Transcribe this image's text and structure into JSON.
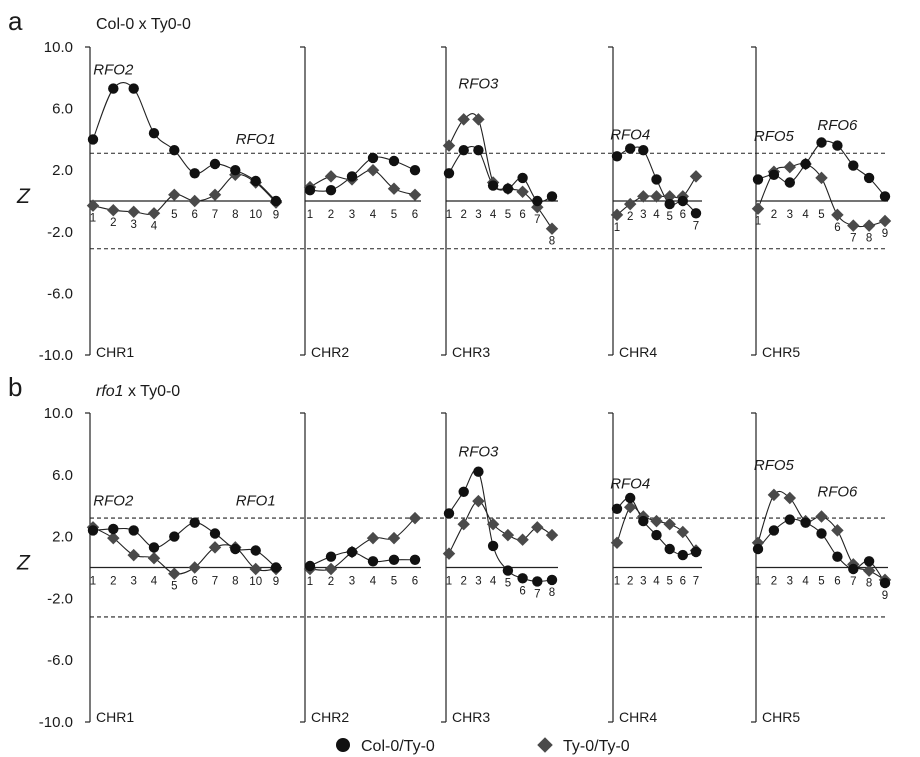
{
  "chart_data": [
    {
      "type": "line",
      "panel_label": "a",
      "title_italic": "",
      "title_rest": "Col-0 x Ty0-0",
      "ylabel": "Z",
      "ylim": [
        -10,
        10
      ],
      "yticks": [
        "10.0",
        "6.0",
        "2.0",
        "-2.0",
        "-6.0",
        "-10.0"
      ],
      "threshold": 3.1,
      "series_names": [
        "Col-0/Ty-0",
        "Ty-0/Ty-0"
      ],
      "chromosomes": [
        {
          "name": "CHR1",
          "markers": [
            {
              "label": "1",
              "col": 4.0,
              "ty": -0.3
            },
            {
              "label": "2",
              "col": 7.3,
              "ty": -0.6
            },
            {
              "label": "3",
              "col": 7.3,
              "ty": -0.7
            },
            {
              "label": "4",
              "col": 4.4,
              "ty": -0.8
            },
            {
              "label": "5",
              "col": 3.3,
              "ty": 0.4
            },
            {
              "label": "6",
              "col": 1.8,
              "ty": 0.0
            },
            {
              "label": "7",
              "col": 2.4,
              "ty": 0.4
            },
            {
              "label": "8",
              "col": 2.0,
              "ty": 1.7
            },
            {
              "label": "10",
              "col": 1.3,
              "ty": 1.2
            },
            {
              "label": "9",
              "col": 0.0,
              "ty": -0.1
            }
          ],
          "annotations": [
            {
              "text": "RFO2",
              "marker": 1,
              "z": 8.2
            },
            {
              "text": "RFO1",
              "marker": 8,
              "z": 3.7
            }
          ]
        },
        {
          "name": "CHR2",
          "markers": [
            {
              "label": "1",
              "col": 0.7,
              "ty": 0.9
            },
            {
              "label": "2",
              "col": 0.7,
              "ty": 1.6
            },
            {
              "label": "3",
              "col": 1.6,
              "ty": 1.4
            },
            {
              "label": "4",
              "col": 2.8,
              "ty": 2.0
            },
            {
              "label": "5",
              "col": 2.6,
              "ty": 0.8
            },
            {
              "label": "6",
              "col": 2.0,
              "ty": 0.4
            }
          ],
          "annotations": []
        },
        {
          "name": "CHR3",
          "markers": [
            {
              "label": "1",
              "col": 1.8,
              "ty": 3.6
            },
            {
              "label": "2",
              "col": 3.3,
              "ty": 5.3
            },
            {
              "label": "3",
              "col": 3.3,
              "ty": 5.3
            },
            {
              "label": "4",
              "col": 1.0,
              "ty": 1.2
            },
            {
              "label": "5",
              "col": 0.8,
              "ty": 0.8
            },
            {
              "label": "6",
              "col": 1.5,
              "ty": 0.6
            },
            {
              "label": "7",
              "col": 0.0,
              "ty": -0.4
            },
            {
              "label": "8",
              "col": 0.3,
              "ty": -1.8
            }
          ],
          "annotations": [
            {
              "text": "RFO3",
              "marker": 2,
              "z": 7.3
            }
          ]
        },
        {
          "name": "CHR4",
          "markers": [
            {
              "label": "1",
              "col": 2.9,
              "ty": -0.9
            },
            {
              "label": "2",
              "col": 3.4,
              "ty": -0.2
            },
            {
              "label": "3",
              "col": 3.3,
              "ty": 0.3
            },
            {
              "label": "4",
              "col": 1.4,
              "ty": 0.3
            },
            {
              "label": "5",
              "col": -0.2,
              "ty": 0.3
            },
            {
              "label": "6",
              "col": 0.0,
              "ty": 0.3
            },
            {
              "label": "7",
              "col": -0.8,
              "ty": 1.6
            }
          ],
          "annotations": [
            {
              "text": "RFO4",
              "marker": 1,
              "z": 4.0
            }
          ]
        },
        {
          "name": "CHR5",
          "markers": [
            {
              "label": "1",
              "col": 1.4,
              "ty": -0.5
            },
            {
              "label": "2",
              "col": 1.7,
              "ty": 1.9
            },
            {
              "label": "3",
              "col": 1.2,
              "ty": 2.2
            },
            {
              "label": "4",
              "col": 2.4,
              "ty": 2.4
            },
            {
              "label": "5",
              "col": 3.8,
              "ty": 1.5
            },
            {
              "label": "6",
              "col": 3.6,
              "ty": -0.9
            },
            {
              "label": "7",
              "col": 2.3,
              "ty": -1.6
            },
            {
              "label": "8",
              "col": 1.5,
              "ty": -1.6
            },
            {
              "label": "9",
              "col": 0.3,
              "ty": -1.3
            }
          ],
          "annotations": [
            {
              "text": "RFO5",
              "marker": 1,
              "z": 3.9
            },
            {
              "text": "RFO6",
              "marker": 5,
              "z": 4.6
            }
          ]
        }
      ]
    },
    {
      "type": "line",
      "panel_label": "b",
      "title_italic": "rfo1",
      "title_rest": " x Ty0-0",
      "ylabel": "Z",
      "ylim": [
        -10,
        10
      ],
      "yticks": [
        "10.0",
        "6.0",
        "2.0",
        "-2.0",
        "-6.0",
        "-10.0"
      ],
      "threshold": 3.2,
      "series_names": [
        "Col-0/Ty-0",
        "Ty-0/Ty-0"
      ],
      "chromosomes": [
        {
          "name": "CHR1",
          "markers": [
            {
              "label": "1",
              "col": 2.4,
              "ty": 2.6
            },
            {
              "label": "2",
              "col": 2.5,
              "ty": 1.9
            },
            {
              "label": "3",
              "col": 2.4,
              "ty": 0.8
            },
            {
              "label": "4",
              "col": 1.3,
              "ty": 0.6
            },
            {
              "label": "5",
              "col": 2.0,
              "ty": -0.4
            },
            {
              "label": "6",
              "col": 2.9,
              "ty": 0.0
            },
            {
              "label": "7",
              "col": 2.2,
              "ty": 1.3
            },
            {
              "label": "8",
              "col": 1.2,
              "ty": 1.3
            },
            {
              "label": "10",
              "col": 1.1,
              "ty": -0.1
            },
            {
              "label": "9",
              "col": 0.0,
              "ty": -0.1
            }
          ],
          "annotations": [
            {
              "text": "RFO2",
              "marker": 1,
              "z": 4.0
            },
            {
              "text": "RFO1",
              "marker": 8,
              "z": 4.0
            }
          ]
        },
        {
          "name": "CHR2",
          "markers": [
            {
              "label": "1",
              "col": 0.1,
              "ty": -0.1
            },
            {
              "label": "2",
              "col": 0.7,
              "ty": -0.1
            },
            {
              "label": "3",
              "col": 1.0,
              "ty": 1.0
            },
            {
              "label": "4",
              "col": 0.4,
              "ty": 1.9
            },
            {
              "label": "5",
              "col": 0.5,
              "ty": 1.9
            },
            {
              "label": "6",
              "col": 0.5,
              "ty": 3.2
            }
          ],
          "annotations": []
        },
        {
          "name": "CHR3",
          "markers": [
            {
              "label": "1",
              "col": 3.5,
              "ty": 0.9
            },
            {
              "label": "2",
              "col": 4.9,
              "ty": 2.8
            },
            {
              "label": "3",
              "col": 6.2,
              "ty": 4.3
            },
            {
              "label": "4",
              "col": 1.4,
              "ty": 2.8
            },
            {
              "label": "5",
              "col": -0.2,
              "ty": 2.1
            },
            {
              "label": "6",
              "col": -0.7,
              "ty": 1.8
            },
            {
              "label": "7",
              "col": -0.9,
              "ty": 2.6
            },
            {
              "label": "8",
              "col": -0.8,
              "ty": 2.1
            }
          ],
          "annotations": [
            {
              "text": "RFO3",
              "marker": 2,
              "z": 7.2
            }
          ]
        },
        {
          "name": "CHR4",
          "markers": [
            {
              "label": "1",
              "col": 3.8,
              "ty": 1.6
            },
            {
              "label": "2",
              "col": 4.5,
              "ty": 3.9
            },
            {
              "label": "3",
              "col": 3.0,
              "ty": 3.3
            },
            {
              "label": "4",
              "col": 2.1,
              "ty": 3.0
            },
            {
              "label": "5",
              "col": 1.2,
              "ty": 2.8
            },
            {
              "label": "6",
              "col": 0.8,
              "ty": 2.3
            },
            {
              "label": "7",
              "col": 1.0,
              "ty": 1.1
            }
          ],
          "annotations": [
            {
              "text": "RFO4",
              "marker": 1,
              "z": 5.1
            }
          ]
        },
        {
          "name": "CHR5",
          "markers": [
            {
              "label": "1",
              "col": 1.2,
              "ty": 1.6
            },
            {
              "label": "2",
              "col": 2.4,
              "ty": 4.7
            },
            {
              "label": "3",
              "col": 3.1,
              "ty": 4.5
            },
            {
              "label": "4",
              "col": 2.9,
              "ty": 3.0
            },
            {
              "label": "5",
              "col": 2.2,
              "ty": 3.3
            },
            {
              "label": "6",
              "col": 0.7,
              "ty": 2.4
            },
            {
              "label": "7",
              "col": -0.1,
              "ty": 0.2
            },
            {
              "label": "8",
              "col": 0.4,
              "ty": -0.2
            },
            {
              "label": "9",
              "col": -1.0,
              "ty": -0.8
            }
          ],
          "annotations": [
            {
              "text": "RFO5",
              "marker": 1,
              "z": 6.3
            },
            {
              "text": "RFO6",
              "marker": 5,
              "z": 4.6
            }
          ]
        }
      ]
    }
  ],
  "legend": [
    {
      "label": "Col-0/Ty-0",
      "marker": "circle"
    },
    {
      "label": "Ty-0/Ty-0",
      "marker": "diamond"
    }
  ],
  "colors": {
    "col_marker": "#111111",
    "ty_marker": "#4a4a4a",
    "line": "#222222",
    "axis": "#222222"
  }
}
